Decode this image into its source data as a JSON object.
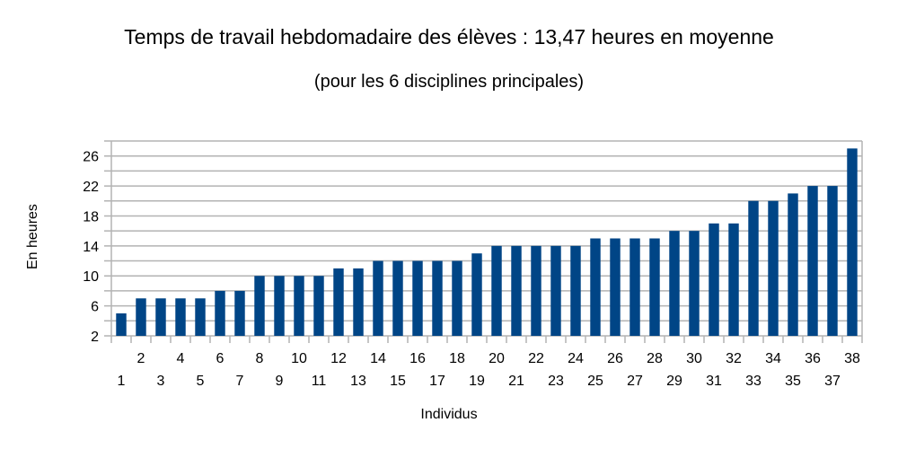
{
  "chart_data": {
    "type": "bar",
    "title": "Temps de travail hebdomadaire des élèves : 13,47 heures en moyenne",
    "subtitle": "(pour les 6 disciplines principales)",
    "xlabel": "Individus",
    "ylabel": "En heures",
    "ylim": [
      2,
      28
    ],
    "yticks": [
      2,
      6,
      10,
      14,
      18,
      22,
      26
    ],
    "grid": true,
    "color": "#004586",
    "categories": [
      "1",
      "2",
      "3",
      "4",
      "5",
      "6",
      "7",
      "8",
      "9",
      "10",
      "11",
      "12",
      "13",
      "14",
      "15",
      "16",
      "17",
      "18",
      "19",
      "20",
      "21",
      "22",
      "23",
      "24",
      "25",
      "26",
      "27",
      "28",
      "29",
      "30",
      "31",
      "32",
      "33",
      "34",
      "35",
      "36",
      "37",
      "38"
    ],
    "values": [
      5,
      7,
      7,
      7,
      7,
      8,
      8,
      10,
      10,
      10,
      10,
      11,
      11,
      12,
      12,
      12,
      12,
      12,
      13,
      14,
      14,
      14,
      14,
      14,
      15,
      15,
      15,
      15,
      16,
      16,
      17,
      17,
      20,
      20,
      21,
      22,
      22,
      27
    ]
  }
}
